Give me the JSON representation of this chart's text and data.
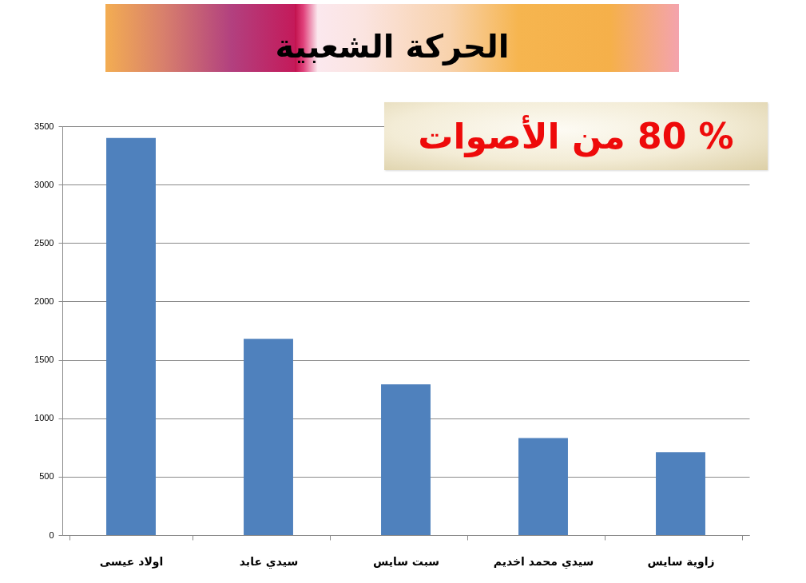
{
  "chart_data": {
    "type": "bar",
    "title": "الحركة الشعبية",
    "categories": [
      "اولاد عيسى",
      "سيدي عابد",
      "سبت سايس",
      "سيدي محمد اخديم",
      "زاوية سايس"
    ],
    "values": [
      3400,
      1680,
      1290,
      830,
      710
    ],
    "color": "#4f81bd",
    "ylim": [
      0,
      3500
    ],
    "yticks": [
      0,
      500,
      1000,
      1500,
      2000,
      2500,
      3000,
      3500
    ],
    "grid": "y",
    "annotations": [
      "% 80 من الأصوات"
    ]
  }
}
